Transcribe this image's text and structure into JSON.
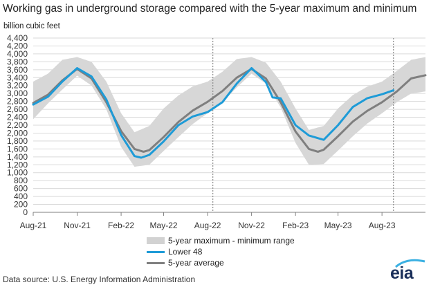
{
  "chart_data": {
    "type": "line",
    "title": "Working gas in underground  storage compared with the 5-year maximum and minimum",
    "ylabel": "billion cubic feet",
    "ylim": [
      0,
      4400
    ],
    "yticks": [
      "0",
      "200",
      "400",
      "600",
      "800",
      "1,000",
      "1,200",
      "1,400",
      "1,600",
      "1,800",
      "2,000",
      "2,200",
      "2,400",
      "2,600",
      "2,800",
      "3,000",
      "3,200",
      "3,400",
      "3,600",
      "3,800",
      "4,000",
      "4,200",
      "4,400"
    ],
    "ytick_values": [
      0,
      200,
      400,
      600,
      800,
      1000,
      1200,
      1400,
      1600,
      1800,
      2000,
      2200,
      2400,
      2600,
      2800,
      3000,
      3200,
      3400,
      3600,
      3800,
      4000,
      4200,
      4400
    ],
    "xtick_labels": [
      "Aug-21",
      "Nov-21",
      "Feb-22",
      "May-22",
      "Aug-22",
      "Nov-22",
      "Feb-23",
      "May-23",
      "Aug-23"
    ],
    "xtick_dates": [
      "2021-08-01",
      "2021-11-01",
      "2022-02-01",
      "2022-05-01",
      "2022-08-01",
      "2022-11-01",
      "2023-02-01",
      "2023-05-01",
      "2023-08-01"
    ],
    "xlim": [
      "2021-08-01",
      "2023-10-31"
    ],
    "grid": "horizontal",
    "legend_position": "bottom-center",
    "vertical_markers": [
      "2022-08-12",
      "2023-08-25"
    ],
    "series": [
      {
        "name": "5-year maximum - minimum range",
        "kind": "band",
        "color": "#d9d9d9",
        "x": [
          "2021-08-01",
          "2021-09-01",
          "2021-10-01",
          "2021-11-01",
          "2021-12-01",
          "2022-01-01",
          "2022-02-01",
          "2022-03-01",
          "2022-04-01",
          "2022-05-01",
          "2022-06-01",
          "2022-07-01",
          "2022-08-01",
          "2022-09-01",
          "2022-10-01",
          "2022-11-01",
          "2022-12-01",
          "2023-01-01",
          "2023-02-01",
          "2023-03-01",
          "2023-04-01",
          "2023-05-01",
          "2023-06-01",
          "2023-07-01",
          "2023-08-01",
          "2023-09-01",
          "2023-10-01",
          "2023-10-31"
        ],
        "upper": [
          3300,
          3500,
          3850,
          3920,
          3800,
          3300,
          2500,
          2020,
          2180,
          2620,
          2950,
          3180,
          3300,
          3550,
          3870,
          3920,
          3780,
          3300,
          2620,
          2080,
          2180,
          2620,
          2960,
          3170,
          3300,
          3570,
          3850,
          3920
        ],
        "lower": [
          2350,
          2750,
          3100,
          3450,
          3200,
          2600,
          1650,
          1150,
          1200,
          1550,
          1900,
          2230,
          2500,
          2780,
          3150,
          3500,
          3250,
          2650,
          1750,
          1200,
          1220,
          1560,
          1920,
          2240,
          2500,
          2780,
          3000,
          3050
        ]
      },
      {
        "name": "Lower 48",
        "kind": "line",
        "color": "#1e9bd7",
        "x": [
          "2021-08-01",
          "2021-09-01",
          "2021-10-01",
          "2021-11-01",
          "2021-12-01",
          "2022-01-01",
          "2022-02-01",
          "2022-03-01",
          "2022-03-15",
          "2022-04-01",
          "2022-05-01",
          "2022-06-01",
          "2022-07-01",
          "2022-08-01",
          "2022-09-01",
          "2022-10-01",
          "2022-11-01",
          "2022-11-15",
          "2022-12-01",
          "2022-12-15",
          "2023-01-01",
          "2023-02-01",
          "2023-03-01",
          "2023-04-01",
          "2023-05-01",
          "2023-06-01",
          "2023-07-01",
          "2023-08-01",
          "2023-08-25"
        ],
        "y": [
          2720,
          2920,
          3300,
          3640,
          3430,
          2850,
          1950,
          1420,
          1380,
          1450,
          1790,
          2200,
          2420,
          2530,
          2780,
          3250,
          3640,
          3480,
          3290,
          2900,
          2880,
          2200,
          1940,
          1830,
          2200,
          2660,
          2880,
          2980,
          3080
        ]
      },
      {
        "name": "5-year average",
        "kind": "line",
        "color": "#7f7f7f",
        "x": [
          "2021-08-01",
          "2021-09-01",
          "2021-10-01",
          "2021-11-01",
          "2021-12-01",
          "2022-01-01",
          "2022-02-01",
          "2022-03-01",
          "2022-03-20",
          "2022-04-01",
          "2022-05-01",
          "2022-06-01",
          "2022-07-01",
          "2022-08-01",
          "2022-09-01",
          "2022-10-01",
          "2022-11-01",
          "2022-12-01",
          "2023-01-01",
          "2023-02-01",
          "2023-03-01",
          "2023-03-20",
          "2023-04-01",
          "2023-05-01",
          "2023-06-01",
          "2023-07-01",
          "2023-08-01",
          "2023-09-01",
          "2023-10-01",
          "2023-10-31"
        ],
        "y": [
          2760,
          2970,
          3330,
          3620,
          3380,
          2780,
          2050,
          1600,
          1530,
          1570,
          1900,
          2280,
          2570,
          2790,
          3060,
          3400,
          3620,
          3380,
          2780,
          2040,
          1600,
          1530,
          1580,
          1920,
          2290,
          2560,
          2780,
          3050,
          3380,
          3460
        ]
      }
    ],
    "source": "Data source:  U.S. Energy Information Administration",
    "logo_text": "eia"
  }
}
